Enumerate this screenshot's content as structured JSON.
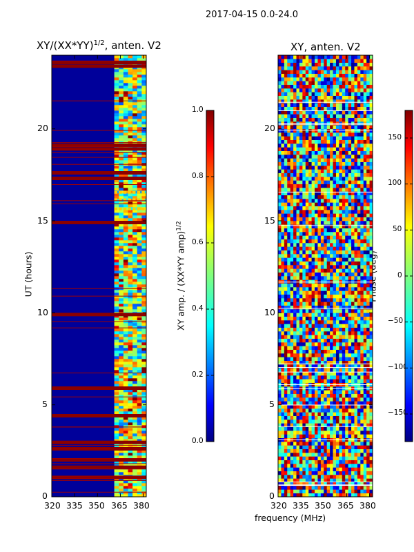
{
  "suptitle": "2017-04-15 0.0-24.0",
  "chart_data": [
    {
      "type": "heatmap",
      "title": "XY/(XX*YY)^{1/2}, anten. V2",
      "title_main": "XY/(XX*YY)",
      "title_sup": "1/2",
      "title_tail": ", anten. V2",
      "xlabel": "",
      "ylabel": "UT (hours)",
      "xlim": [
        320,
        382
      ],
      "ylim": [
        0,
        24
      ],
      "xticks": [
        "320",
        "335",
        "350",
        "365",
        "380"
      ],
      "yticks": [
        "0",
        "5",
        "10",
        "15",
        "20"
      ],
      "colorbar": {
        "label": "XY amp. / (XX*YY amp)^{1/2}",
        "label_main": "XY amp. / (XX*YY amp)",
        "label_sup": "1/2",
        "range": [
          0.0,
          1.0
        ],
        "ticks": [
          "0.0",
          "0.2",
          "0.4",
          "0.6",
          "0.8",
          "1.0"
        ]
      },
      "notes": "Mostly low values (dark blue) below ~361 MHz; high-variance bands 361-382 MHz; saturated flagged rows near 1.5, 2.5, 4.3, 5.8, 9.8, 14.8, 17.2, 18.8 and 23.3 UT."
    },
    {
      "type": "heatmap",
      "title": "XY, anten. V2",
      "xlabel": "frequency (MHz)",
      "ylabel": "",
      "xlim": [
        320,
        382
      ],
      "ylim": [
        0,
        24
      ],
      "xticks": [
        "320",
        "335",
        "350",
        "365",
        "380"
      ],
      "yticks": [
        "0",
        "5",
        "10",
        "15",
        "20"
      ],
      "colorbar": {
        "label": "Phase (deg)",
        "range": [
          -180,
          180
        ],
        "ticks": [
          "−150",
          "−100",
          "−50",
          "0",
          "50",
          "100",
          "150"
        ]
      },
      "notes": "XY phase in degrees, highly variable across frequency and time."
    }
  ]
}
